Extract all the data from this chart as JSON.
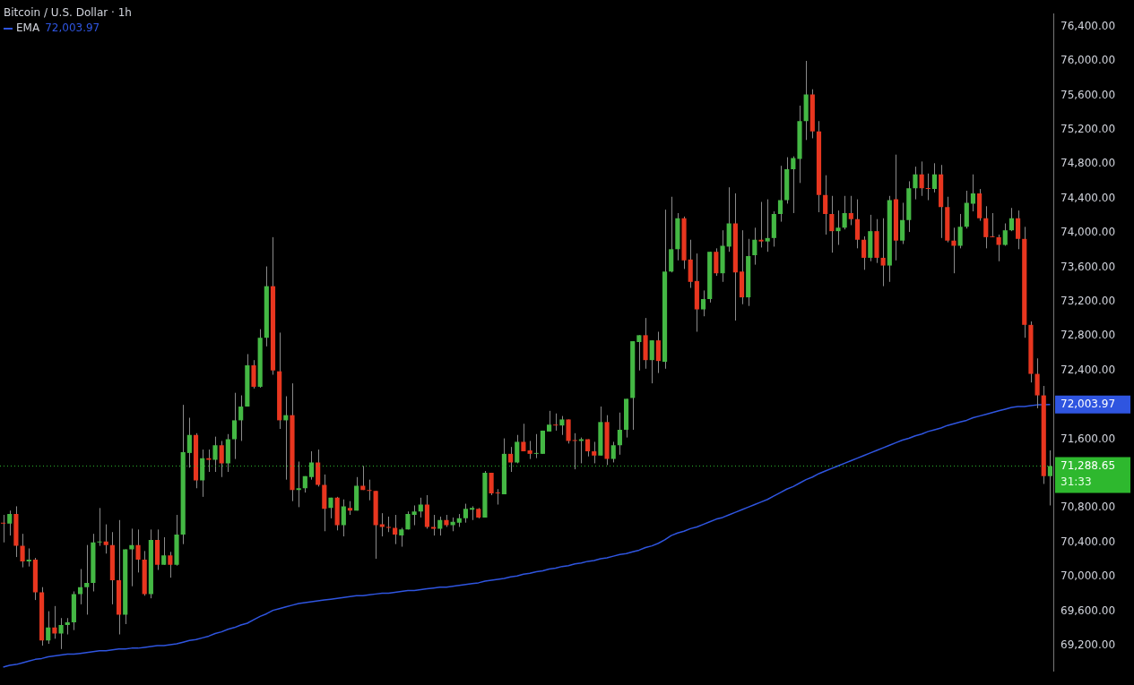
{
  "chart_data": {
    "type": "candlestick",
    "title": "Bitcoin / U.S. Dollar · 1h",
    "categories": [
      null,
      null,
      null,
      null,
      null,
      null,
      null,
      null,
      null,
      null,
      null,
      null,
      null,
      null,
      null,
      null,
      null,
      null,
      null,
      null,
      null,
      null,
      null,
      null,
      null,
      null,
      null,
      null,
      null,
      null,
      null,
      null,
      null,
      null,
      null,
      null,
      null,
      null,
      null,
      null,
      null,
      null,
      null,
      null,
      null,
      null,
      null,
      null,
      null,
      null,
      null,
      null,
      null,
      null,
      null,
      null,
      null,
      null,
      null,
      null,
      null,
      null,
      null,
      null,
      null,
      null,
      null,
      null,
      null,
      null,
      null,
      null,
      null,
      null,
      null,
      null,
      null,
      null,
      null,
      null,
      null,
      null,
      null,
      null,
      null,
      null,
      null,
      null,
      null,
      null,
      null,
      null,
      null,
      null,
      null,
      null,
      null,
      null,
      null,
      null,
      null,
      null,
      null,
      null,
      null,
      null,
      null,
      null,
      null,
      null,
      null,
      null,
      null,
      null,
      null,
      null,
      null,
      null,
      null,
      null,
      null,
      null,
      null,
      null,
      null,
      null,
      null,
      null,
      null,
      null,
      null,
      null,
      null,
      null,
      null,
      null,
      null,
      null,
      null,
      null,
      null,
      null,
      null,
      null,
      null,
      null,
      null,
      null,
      null,
      null,
      null,
      null,
      null,
      null,
      null,
      null,
      null,
      null,
      null,
      null,
      null,
      null,
      null,
      null
    ],
    "ohlc": [
      [
        70630,
        70720,
        70400,
        70620
      ],
      [
        70620,
        70770,
        70480,
        70730
      ],
      [
        70730,
        70820,
        70230,
        70360
      ],
      [
        70360,
        70500,
        70110,
        70180
      ],
      [
        70180,
        70330,
        70120,
        70200
      ],
      [
        70200,
        70220,
        69730,
        69820
      ],
      [
        69820,
        69880,
        69200,
        69260
      ],
      [
        69260,
        69600,
        69220,
        69410
      ],
      [
        69410,
        69660,
        69280,
        69340
      ],
      [
        69340,
        69520,
        69160,
        69440
      ],
      [
        69440,
        69520,
        69330,
        69470
      ],
      [
        69470,
        69830,
        69380,
        69800
      ],
      [
        69800,
        70090,
        69680,
        69880
      ],
      [
        69880,
        70370,
        69560,
        69930
      ],
      [
        69930,
        70500,
        69830,
        70400
      ],
      [
        70400,
        70800,
        70360,
        70410
      ],
      [
        70410,
        70610,
        70270,
        70370
      ],
      [
        70370,
        70520,
        69680,
        69960
      ],
      [
        69960,
        70660,
        69330,
        69560
      ],
      [
        69560,
        70320,
        69450,
        70320
      ],
      [
        70320,
        70560,
        69890,
        70370
      ],
      [
        70370,
        70550,
        70050,
        70200
      ],
      [
        70200,
        70300,
        69780,
        69800
      ],
      [
        69800,
        70550,
        69750,
        70430
      ],
      [
        70430,
        70550,
        70080,
        70140
      ],
      [
        70140,
        70460,
        70140,
        70250
      ],
      [
        70250,
        70290,
        69990,
        70140
      ],
      [
        70140,
        70720,
        70130,
        70490
      ],
      [
        70490,
        72000,
        70380,
        71450
      ],
      [
        71440,
        71850,
        71270,
        71650
      ],
      [
        71650,
        71670,
        71030,
        71120
      ],
      [
        71120,
        71480,
        70930,
        71380
      ],
      [
        71380,
        71480,
        71220,
        71360
      ],
      [
        71360,
        71630,
        71220,
        71530
      ],
      [
        71530,
        71580,
        71160,
        71320
      ],
      [
        71320,
        71660,
        71220,
        71600
      ],
      [
        71600,
        72140,
        71370,
        71820
      ],
      [
        71820,
        72110,
        71580,
        71980
      ],
      [
        71980,
        72590,
        71980,
        72460
      ],
      [
        72460,
        72520,
        72190,
        72210
      ],
      [
        72210,
        72880,
        72200,
        72780
      ],
      [
        72780,
        73610,
        72680,
        73380
      ],
      [
        73380,
        73950,
        72350,
        72400
      ],
      [
        72390,
        72840,
        71720,
        71820
      ],
      [
        71820,
        72100,
        71130,
        71880
      ],
      [
        71880,
        72250,
        70880,
        71010
      ],
      [
        71010,
        71340,
        70810,
        71030
      ],
      [
        71030,
        71170,
        70980,
        71170
      ],
      [
        71160,
        71460,
        71130,
        71330
      ],
      [
        71330,
        71480,
        71050,
        71070
      ],
      [
        71070,
        71190,
        70530,
        70790
      ],
      [
        70800,
        70920,
        70680,
        70920
      ],
      [
        70920,
        70930,
        70540,
        70600
      ],
      [
        70600,
        70900,
        70470,
        70820
      ],
      [
        70800,
        70880,
        70720,
        70770
      ],
      [
        70770,
        71160,
        70770,
        71060
      ],
      [
        71060,
        71290,
        71010,
        71010
      ],
      [
        71010,
        71130,
        70890,
        71000
      ],
      [
        71000,
        71000,
        70210,
        70600
      ],
      [
        70610,
        70740,
        70470,
        70580
      ],
      [
        70580,
        70700,
        70520,
        70570
      ],
      [
        70570,
        70720,
        70380,
        70490
      ],
      [
        70480,
        70570,
        70350,
        70550
      ],
      [
        70550,
        70760,
        70550,
        70730
      ],
      [
        70720,
        70830,
        70600,
        70760
      ],
      [
        70760,
        70920,
        70690,
        70840
      ],
      [
        70840,
        70950,
        70560,
        70580
      ],
      [
        70580,
        70720,
        70480,
        70560
      ],
      [
        70560,
        70700,
        70480,
        70660
      ],
      [
        70660,
        70720,
        70580,
        70600
      ],
      [
        70600,
        70690,
        70530,
        70640
      ],
      [
        70630,
        70730,
        70580,
        70680
      ],
      [
        70680,
        70850,
        70630,
        70790
      ],
      [
        70780,
        70820,
        70660,
        70800
      ],
      [
        70790,
        70800,
        70680,
        70690
      ],
      [
        70690,
        71230,
        70690,
        71210
      ],
      [
        71210,
        71210,
        70950,
        70970
      ],
      [
        70980,
        71020,
        70840,
        70970
      ],
      [
        70960,
        71610,
        70960,
        71430
      ],
      [
        71430,
        71510,
        71220,
        71330
      ],
      [
        71330,
        71650,
        71320,
        71570
      ],
      [
        71570,
        71780,
        71460,
        71460
      ],
      [
        71470,
        71580,
        71370,
        71430
      ],
      [
        71430,
        71660,
        71380,
        71440
      ],
      [
        71430,
        71700,
        71430,
        71700
      ],
      [
        71690,
        71930,
        71690,
        71770
      ],
      [
        71770,
        71900,
        71700,
        71760
      ],
      [
        71760,
        71870,
        71650,
        71830
      ],
      [
        71830,
        71830,
        71550,
        71580
      ],
      [
        71590,
        71670,
        71250,
        71580
      ],
      [
        71580,
        71620,
        71320,
        71600
      ],
      [
        71600,
        71600,
        71400,
        71460
      ],
      [
        71460,
        71570,
        71320,
        71410
      ],
      [
        71410,
        71980,
        71410,
        71800
      ],
      [
        71800,
        71880,
        71300,
        71370
      ],
      [
        71370,
        71570,
        71330,
        71530
      ],
      [
        71530,
        71910,
        71420,
        71710
      ],
      [
        71710,
        72070,
        71620,
        72070
      ],
      [
        72080,
        72740,
        71710,
        72740
      ],
      [
        72730,
        72810,
        72400,
        72810
      ],
      [
        72810,
        73010,
        72420,
        72520
      ],
      [
        72520,
        72750,
        72250,
        72750
      ],
      [
        72750,
        72850,
        72370,
        72510
      ],
      [
        72500,
        74270,
        72420,
        73550
      ],
      [
        73550,
        74420,
        73540,
        73810
      ],
      [
        73810,
        74230,
        73680,
        74170
      ],
      [
        74170,
        74190,
        73580,
        73680
      ],
      [
        73690,
        73920,
        73360,
        73430
      ],
      [
        73440,
        73760,
        72850,
        73110
      ],
      [
        73110,
        73330,
        73030,
        73230
      ],
      [
        73230,
        73780,
        73190,
        73780
      ],
      [
        73780,
        73820,
        73500,
        73530
      ],
      [
        73530,
        74030,
        73430,
        73850
      ],
      [
        73840,
        74530,
        73780,
        74110
      ],
      [
        74110,
        74460,
        72980,
        73540
      ],
      [
        73550,
        74030,
        73170,
        73250
      ],
      [
        73250,
        73930,
        73150,
        73730
      ],
      [
        73740,
        74060,
        73630,
        73920
      ],
      [
        73920,
        74360,
        73830,
        73900
      ],
      [
        73900,
        74390,
        73780,
        73940
      ],
      [
        73940,
        74250,
        73840,
        74220
      ],
      [
        74220,
        74780,
        74130,
        74380
      ],
      [
        74380,
        74880,
        74340,
        74740
      ],
      [
        74740,
        74890,
        74230,
        74870
      ],
      [
        74860,
        75480,
        74580,
        75300
      ],
      [
        75300,
        76000,
        75080,
        75610
      ],
      [
        75610,
        75670,
        75100,
        75180
      ],
      [
        75180,
        75300,
        74240,
        74440
      ],
      [
        74440,
        74670,
        73980,
        74220
      ],
      [
        74220,
        74430,
        73770,
        74020
      ],
      [
        74020,
        74260,
        73860,
        74060
      ],
      [
        74060,
        74430,
        74040,
        74230
      ],
      [
        74230,
        74430,
        74090,
        74160
      ],
      [
        74160,
        74390,
        73820,
        73920
      ],
      [
        73920,
        73960,
        73570,
        73710
      ],
      [
        73710,
        74210,
        73670,
        74020
      ],
      [
        74020,
        74160,
        73650,
        73710
      ],
      [
        73710,
        74170,
        73380,
        73620
      ],
      [
        73620,
        74430,
        73430,
        74380
      ],
      [
        74390,
        74910,
        73680,
        73910
      ],
      [
        73910,
        74350,
        73870,
        74150
      ],
      [
        74150,
        74600,
        74010,
        74520
      ],
      [
        74520,
        74770,
        74390,
        74680
      ],
      [
        74680,
        74830,
        74430,
        74520
      ],
      [
        74520,
        74690,
        74380,
        74510
      ],
      [
        74510,
        74810,
        74470,
        74680
      ],
      [
        74680,
        74790,
        73940,
        74300
      ],
      [
        74300,
        74420,
        73890,
        73910
      ],
      [
        73910,
        74060,
        73530,
        73850
      ],
      [
        73850,
        74220,
        73820,
        74070
      ],
      [
        74070,
        74490,
        74050,
        74350
      ],
      [
        74340,
        74680,
        74250,
        74460
      ],
      [
        74460,
        74510,
        74140,
        74170
      ],
      [
        74170,
        74310,
        73820,
        73950
      ],
      [
        73960,
        74230,
        73950,
        73950
      ],
      [
        73950,
        73980,
        73670,
        73860
      ],
      [
        73860,
        74110,
        73850,
        74030
      ],
      [
        74030,
        74290,
        74020,
        74170
      ],
      [
        74170,
        74260,
        73810,
        73930
      ],
      [
        73930,
        74070,
        72780,
        72930
      ],
      [
        72930,
        72970,
        72260,
        72360
      ],
      [
        72360,
        72540,
        71960,
        72110
      ],
      [
        72110,
        72220,
        71080,
        71170
      ],
      [
        71170,
        71470,
        70830,
        71288.65
      ]
    ],
    "colors": [
      "#e8361f",
      "#44b844",
      "#e8361f",
      "#e8361f",
      "#44b844",
      "#e8361f",
      "#e8361f",
      "#44b844",
      "#e8361f",
      "#44b844",
      "#44b844",
      "#44b844",
      "#44b844",
      "#44b844",
      "#44b844",
      "#44b844",
      "#e8361f",
      "#e8361f",
      "#e8361f",
      "#44b844",
      "#44b844",
      "#e8361f",
      "#e8361f",
      "#44b844",
      "#e8361f",
      "#44b844",
      "#e8361f",
      "#44b844",
      "#44b844",
      "#44b844",
      "#e8361f",
      "#44b844",
      "#e8361f",
      "#44b844",
      "#e8361f",
      "#44b844",
      "#44b844",
      "#44b844",
      "#44b844",
      "#e8361f",
      "#44b844",
      "#44b844",
      "#e8361f",
      "#e8361f",
      "#44b844",
      "#e8361f",
      "#44b844",
      "#44b844",
      "#44b844",
      "#e8361f",
      "#e8361f",
      "#44b844",
      "#e8361f",
      "#44b844",
      "#e8361f",
      "#44b844",
      "#e8361f",
      "#e8361f",
      "#e8361f",
      "#e8361f",
      "#e8361f",
      "#e8361f",
      "#44b844",
      "#44b844",
      "#44b844",
      "#44b844",
      "#e8361f",
      "#e8361f",
      "#44b844",
      "#e8361f",
      "#44b844",
      "#44b844",
      "#44b844",
      "#44b844",
      "#e8361f",
      "#44b844",
      "#e8361f",
      "#e8361f",
      "#44b844",
      "#e8361f",
      "#44b844",
      "#e8361f",
      "#e8361f",
      "#44b844",
      "#44b844",
      "#44b844",
      "#e8361f",
      "#44b844",
      "#e8361f",
      "#e8361f",
      "#44b844",
      "#e8361f",
      "#e8361f",
      "#44b844",
      "#e8361f",
      "#44b844",
      "#44b844",
      "#44b844",
      "#44b844",
      "#44b844",
      "#e8361f",
      "#44b844",
      "#e8361f",
      "#44b844",
      "#44b844",
      "#44b844",
      "#e8361f",
      "#e8361f",
      "#e8361f",
      "#44b844",
      "#44b844",
      "#e8361f",
      "#44b844",
      "#44b844",
      "#e8361f",
      "#e8361f",
      "#44b844",
      "#44b844",
      "#e8361f",
      "#44b844",
      "#44b844",
      "#44b844",
      "#44b844",
      "#44b844",
      "#44b844",
      "#44b844",
      "#e8361f",
      "#e8361f",
      "#e8361f",
      "#e8361f",
      "#44b844",
      "#44b844",
      "#e8361f",
      "#e8361f",
      "#e8361f",
      "#44b844",
      "#e8361f",
      "#e8361f",
      "#44b844",
      "#e8361f",
      "#44b844",
      "#44b844",
      "#44b844",
      "#e8361f",
      "#e8361f",
      "#44b844",
      "#e8361f",
      "#e8361f",
      "#e8361f",
      "#44b844",
      "#44b844",
      "#44b844",
      "#e8361f",
      "#e8361f",
      "#e8361f",
      "#e8361f",
      "#44b844",
      "#44b844",
      "#e8361f",
      "#e8361f",
      "#e8361f",
      "#e8361f",
      "#e8361f",
      "#44b844"
    ],
    "series": [
      {
        "name": "EMA",
        "type": "line",
        "color": "#2f55e0",
        "values": [
          68950,
          68970,
          68980,
          69000,
          69020,
          69040,
          69050,
          69070,
          69080,
          69090,
          69100,
          69100,
          69110,
          69120,
          69130,
          69140,
          69140,
          69150,
          69160,
          69160,
          69170,
          69170,
          69180,
          69190,
          69200,
          69200,
          69210,
          69220,
          69240,
          69260,
          69270,
          69290,
          69310,
          69340,
          69360,
          69390,
          69410,
          69440,
          69460,
          69500,
          69540,
          69570,
          69610,
          69630,
          69650,
          69670,
          69690,
          69700,
          69710,
          69720,
          69730,
          69740,
          69750,
          69760,
          69770,
          69780,
          69780,
          69790,
          69800,
          69810,
          69810,
          69820,
          69830,
          69840,
          69840,
          69850,
          69860,
          69870,
          69880,
          69880,
          69890,
          69900,
          69910,
          69920,
          69930,
          69950,
          69960,
          69970,
          69980,
          70000,
          70010,
          70030,
          70040,
          70060,
          70070,
          70090,
          70100,
          70120,
          70130,
          70150,
          70160,
          70180,
          70190,
          70210,
          70220,
          70240,
          70260,
          70270,
          70290,
          70310,
          70340,
          70360,
          70390,
          70430,
          70480,
          70510,
          70530,
          70560,
          70580,
          70610,
          70640,
          70670,
          70690,
          70720,
          70750,
          70780,
          70810,
          70840,
          70870,
          70900,
          70940,
          70980,
          71020,
          71050,
          71090,
          71130,
          71160,
          71200,
          71230,
          71260,
          71290,
          71320,
          71350,
          71380,
          71410,
          71440,
          71470,
          71500,
          71530,
          71560,
          71590,
          71610,
          71640,
          71660,
          71690,
          71710,
          71730,
          71760,
          71780,
          71800,
          71820,
          71850,
          71870,
          71890,
          71910,
          71930,
          71950,
          71970,
          71980,
          71980,
          71990,
          72000,
          72000,
          72003.97
        ],
        "value_labels": [
          null,
          null,
          null,
          null,
          null,
          null,
          null,
          null,
          null,
          null,
          null,
          null,
          null,
          null,
          null,
          null,
          null,
          null,
          null,
          null,
          null,
          null,
          null,
          null,
          null,
          null,
          null,
          null,
          null,
          null,
          null,
          null,
          null,
          null,
          null,
          null,
          null,
          null,
          null,
          null,
          null,
          null,
          null,
          null,
          null,
          null,
          null,
          null,
          null,
          null,
          null,
          null,
          null,
          null,
          null,
          null,
          null,
          null,
          null,
          null,
          null,
          null,
          null,
          null,
          null,
          null,
          null,
          null,
          null,
          null,
          null,
          null,
          null,
          null,
          null,
          null,
          null,
          null,
          null,
          null,
          null,
          null,
          null,
          null,
          null,
          null,
          null,
          null,
          null,
          null,
          null,
          null,
          null,
          null,
          null,
          null,
          null,
          null,
          null,
          null,
          null,
          null,
          null,
          null,
          null,
          null,
          null,
          null,
          null,
          null,
          null,
          null,
          null,
          null,
          null,
          null,
          null,
          null,
          null,
          null,
          null,
          null,
          null,
          null,
          null,
          null,
          null,
          null,
          null,
          null,
          null,
          null,
          null,
          null,
          null,
          null,
          null,
          null,
          null,
          null,
          null,
          null,
          null,
          null,
          null,
          null,
          null,
          null,
          null,
          null,
          null,
          null,
          null,
          null,
          null,
          null,
          null,
          null,
          null,
          null,
          null,
          null,
          null,
          "72,003.97"
        ]
      }
    ],
    "ylim": [
      68900,
      76550
    ],
    "yticks": [
      {
        "value": 69200,
        "label": "69,200.00"
      },
      {
        "value": 69600,
        "label": "69,600.00"
      },
      {
        "value": 70000,
        "label": "70,000.00"
      },
      {
        "value": 70400,
        "label": "70,400.00"
      },
      {
        "value": 70800,
        "label": "70,800.00"
      },
      {
        "value": 71600,
        "label": "71,600.00"
      },
      {
        "value": 72400,
        "label": "72,400.00"
      },
      {
        "value": 72800,
        "label": "72,800.00"
      },
      {
        "value": 73200,
        "label": "73,200.00"
      },
      {
        "value": 73600,
        "label": "73,600.00"
      },
      {
        "value": 74000,
        "label": "74,000.00"
      },
      {
        "value": 74400,
        "label": "74,400.00"
      },
      {
        "value": 74800,
        "label": "74,800.00"
      },
      {
        "value": 75200,
        "label": "75,200.00"
      },
      {
        "value": 75600,
        "label": "75,600.00"
      },
      {
        "value": 76000,
        "label": "76,000.00"
      },
      {
        "value": 76400,
        "label": "76,400.00"
      }
    ],
    "ref_lines": [
      {
        "axis": "y",
        "value": 71288.65,
        "label": "71,288.65",
        "color": "#2eb82e",
        "line_style": "dotted"
      }
    ],
    "annotations": [
      "31:33"
    ],
    "tick_labels": "y",
    "legend": "top left",
    "marker": "none",
    "grid": false
  }
}
